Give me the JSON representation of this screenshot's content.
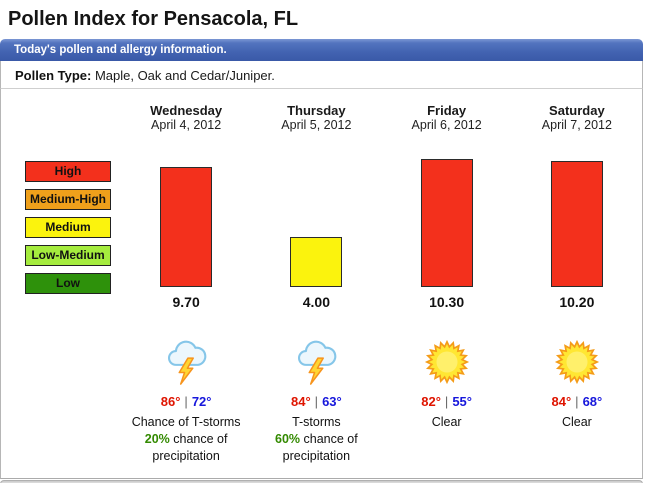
{
  "title": "Pollen Index for Pensacola, FL",
  "info_bar": {
    "text": "Today's pollen and allergy information."
  },
  "pollen_type": {
    "label": "Pollen Type:",
    "value": " Maple, Oak and Cedar/Juniper."
  },
  "legend": {
    "items": [
      {
        "label": "High",
        "color": "#f3301c"
      },
      {
        "label": "Medium-High",
        "color": "#efa01b"
      },
      {
        "label": "Medium",
        "color": "#fbf30d"
      },
      {
        "label": "Low-Medium",
        "color": "#a5ec3e"
      },
      {
        "label": "Low",
        "color": "#2e910b"
      }
    ]
  },
  "chart_data": {
    "type": "bar",
    "title": "Pollen Index for Pensacola, FL",
    "categories": [
      "Wednesday April 4, 2012",
      "Thursday April 5, 2012",
      "Friday April 6, 2012",
      "Saturday April 7, 2012"
    ],
    "values": [
      9.7,
      4.0,
      10.3,
      10.2
    ],
    "bar_colors": [
      "#f3301c",
      "#fbf30d",
      "#f3301c",
      "#f3301c"
    ],
    "levels": [
      "High",
      "Medium",
      "High",
      "High"
    ],
    "legend_entries": [
      "High",
      "Medium-High",
      "Medium",
      "Low-Medium",
      "Low"
    ],
    "legend_position": "left",
    "ylim": [
      0,
      11.5
    ],
    "grid": false,
    "value_labels": [
      "9.70",
      "4.00",
      "10.30",
      "10.20"
    ]
  },
  "days": [
    {
      "name": "Wednesday",
      "date": "April 4, 2012",
      "value": "9.70",
      "value_num": 9.7,
      "bar_color": "#f3301c",
      "icon": "storm",
      "temp_hi": "86°",
      "temp_sep": "|",
      "temp_lo": "72°",
      "condition": "Chance of T-storms",
      "precip_pct": "20%",
      "precip_rest": " chance of",
      "precip_line2": "precipitation"
    },
    {
      "name": "Thursday",
      "date": "April 5, 2012",
      "value": "4.00",
      "value_num": 4.0,
      "bar_color": "#fbf30d",
      "icon": "storm",
      "temp_hi": "84°",
      "temp_sep": "|",
      "temp_lo": "63°",
      "condition": "T-storms",
      "precip_pct": "60%",
      "precip_rest": " chance of",
      "precip_line2": "precipitation"
    },
    {
      "name": "Friday",
      "date": "April 6, 2012",
      "value": "10.30",
      "value_num": 10.3,
      "bar_color": "#f3301c",
      "icon": "sun",
      "temp_hi": "82°",
      "temp_sep": "|",
      "temp_lo": "55°",
      "condition": "Clear"
    },
    {
      "name": "Saturday",
      "date": "April 7, 2012",
      "value": "10.20",
      "value_num": 10.2,
      "bar_color": "#f3301c",
      "icon": "sun",
      "temp_hi": "84°",
      "temp_sep": "|",
      "temp_lo": "68°",
      "condition": "Clear"
    }
  ]
}
